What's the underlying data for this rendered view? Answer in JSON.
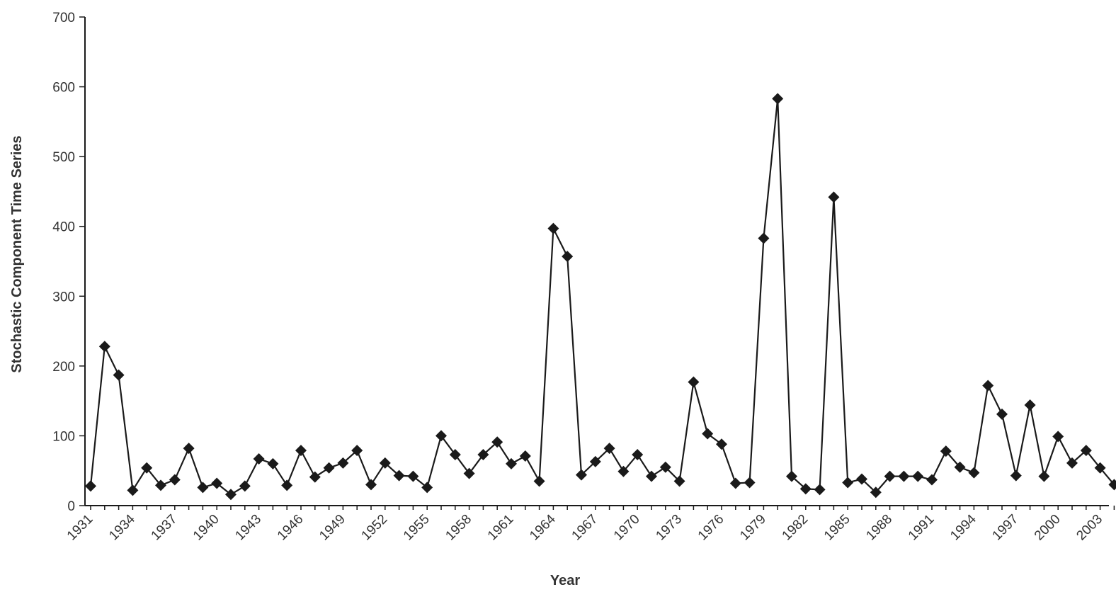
{
  "chart_data": {
    "type": "line",
    "title": "",
    "xlabel": "Year",
    "ylabel": "Stochastic Component Time Series",
    "ylim": [
      0,
      700
    ],
    "yticks": [
      0,
      100,
      200,
      300,
      400,
      500,
      600,
      700
    ],
    "xticks": [
      1931,
      1934,
      1937,
      1940,
      1943,
      1946,
      1949,
      1952,
      1955,
      1958,
      1961,
      1964,
      1967,
      1970,
      1973,
      1976,
      1979,
      1982,
      1985,
      1988,
      1991,
      1994,
      1997,
      2000,
      2003
    ],
    "xlim": [
      1931,
      2004
    ],
    "grid": false,
    "marker": "diamond",
    "series": [
      {
        "x": [
          1931,
          1932,
          1933,
          1934,
          1935,
          1936,
          1937,
          1938,
          1939,
          1940,
          1941,
          1942,
          1943,
          1944,
          1945,
          1946,
          1947,
          1948,
          1949,
          1950,
          1951,
          1952,
          1953,
          1954,
          1955,
          1956,
          1957,
          1958,
          1959,
          1960,
          1961,
          1962,
          1963,
          1964,
          1965,
          1966,
          1967,
          1968,
          1969,
          1970,
          1971,
          1972,
          1973,
          1974,
          1975,
          1976,
          1977,
          1978,
          1979,
          1980,
          1981,
          1982,
          1983,
          1984,
          1985,
          1986,
          1987,
          1988,
          1989,
          1990,
          1991,
          1992,
          1993,
          1994,
          1995,
          1996,
          1997,
          1998,
          1999,
          2000,
          2001,
          2002,
          2003,
          2004
        ],
        "values": [
          28,
          228,
          187,
          22,
          54,
          29,
          37,
          82,
          26,
          32,
          16,
          28,
          67,
          60,
          29,
          79,
          41,
          54,
          61,
          79,
          30,
          61,
          43,
          42,
          26,
          100,
          73,
          46,
          73,
          91,
          60,
          71,
          35,
          397,
          357,
          44,
          63,
          82,
          49,
          73,
          42,
          55,
          35,
          177,
          103,
          88,
          32,
          33,
          383,
          583,
          42,
          24,
          23,
          442,
          33,
          38,
          19,
          42,
          42,
          42,
          37,
          78,
          55,
          47,
          172,
          131,
          43,
          144,
          42,
          99,
          61,
          79,
          54,
          30
        ]
      }
    ]
  }
}
